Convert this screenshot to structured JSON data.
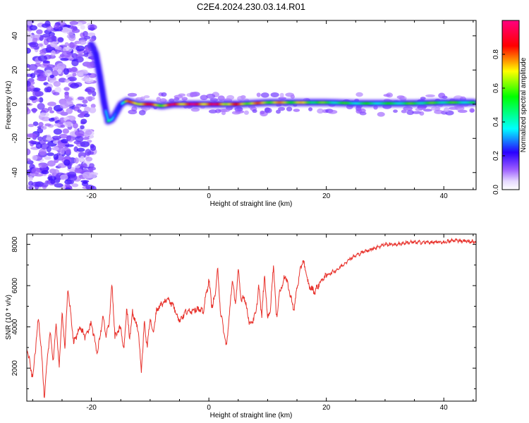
{
  "title": "C2E4.2024.230.03.14.R01",
  "colors": {
    "snr_line": "#e8322c",
    "ridge_low": "#2a00ff",
    "ridge_high": "#ff0000",
    "speckle": "#a060ff"
  },
  "chart_data": [
    {
      "type": "heatmap",
      "name": "spectrogram",
      "title": "C2E4.2024.230.03.14.R01",
      "xlabel": "Height of straight line (km)",
      "ylabel": "Frequency (Hz)",
      "xlim": [
        -31,
        45.5
      ],
      "ylim": [
        -50,
        49
      ],
      "xticks": [
        -20,
        0,
        20,
        40
      ],
      "yticks": [
        -40,
        -20,
        0,
        20,
        40
      ],
      "xticklabels": [
        "-20",
        "0",
        "20",
        "40"
      ],
      "yticklabels": [
        "-40",
        "-20",
        "0",
        "20",
        "40"
      ],
      "colorbar": {
        "label": "Normalized spectral amplitude",
        "range": [
          0,
          1
        ],
        "ticks": [
          0.0,
          0.2,
          0.4,
          0.6,
          0.8
        ],
        "ticklabels": [
          "0.0",
          "0.2",
          "0.4",
          "0.6",
          "0.8"
        ],
        "colormap": "rainbow (white-violet-blue-cyan-green-yellow-red-magenta)"
      },
      "ridge": {
        "description": "dominant spectral line",
        "x": [
          -20,
          -19.3,
          -18.5,
          -17.8,
          -17.2,
          -16.5,
          -15.8,
          -15,
          -14,
          -12,
          -10,
          -8,
          -6,
          -4,
          -2,
          0,
          5,
          10,
          15,
          20,
          25,
          30,
          35,
          40,
          45
        ],
        "freq": [
          35,
          30,
          15,
          0,
          -10,
          -9,
          -5,
          0,
          2,
          0,
          0,
          -1,
          0,
          0,
          0,
          0,
          0,
          1,
          1,
          1,
          0.5,
          0.5,
          0.5,
          1,
          1
        ],
        "amplitude": [
          0.25,
          0.3,
          0.25,
          0.2,
          0.5,
          0.4,
          0.35,
          0.3,
          0.8,
          0.95,
          0.9,
          0.8,
          0.98,
          0.99,
          0.99,
          0.99,
          0.85,
          0.8,
          0.75,
          0.6,
          0.55,
          0.55,
          0.6,
          0.6,
          0.55
        ]
      },
      "noise_region": {
        "x_from": -31,
        "x_to": -19.5,
        "amplitude_typical": 0.1
      }
    },
    {
      "type": "line",
      "name": "snr",
      "xlabel": "Height of straight line (km)",
      "ylabel": "SNR (10 * v/v)",
      "xlim": [
        -31,
        45.5
      ],
      "ylim": [
        400,
        8500
      ],
      "xticks": [
        -20,
        0,
        20,
        40
      ],
      "yticks": [
        2000,
        4000,
        6000,
        8000
      ],
      "xticklabels": [
        "-20",
        "0",
        "20",
        "40"
      ],
      "yticklabels": [
        "2000",
        "4000",
        "6000",
        "8000"
      ],
      "series": [
        {
          "name": "SNR",
          "x": [
            -31,
            -30,
            -29,
            -28.5,
            -28,
            -27.5,
            -27,
            -26.5,
            -26,
            -25.5,
            -25,
            -24.5,
            -24,
            -23,
            -22,
            -21,
            -20,
            -19,
            -18,
            -17.5,
            -17,
            -16.5,
            -16,
            -15,
            -14.5,
            -14,
            -13.5,
            -13,
            -12,
            -11.5,
            -11,
            -10.5,
            -10,
            -9.5,
            -9,
            -8.5,
            -8,
            -7.5,
            -7,
            -6,
            -5,
            -4,
            -3,
            -2,
            -1,
            0,
            0.5,
            1,
            1.5,
            2,
            3,
            4,
            4.5,
            5,
            5.5,
            6,
            7,
            8,
            8.5,
            9,
            9.5,
            10,
            10.5,
            11,
            11.5,
            12,
            13,
            14,
            14.5,
            15,
            16,
            17,
            18,
            19,
            20,
            22,
            24,
            26,
            28,
            30,
            32,
            34,
            36,
            38,
            40,
            42,
            44,
            45.5
          ],
          "y": [
            3000,
            1500,
            4500,
            2800,
            500,
            2500,
            3800,
            2300,
            4200,
            2000,
            4700,
            3000,
            5900,
            3200,
            4000,
            3500,
            4200,
            2700,
            4500,
            3500,
            4200,
            6100,
            3500,
            4000,
            2800,
            4900,
            3500,
            4700,
            3800,
            1800,
            4200,
            3000,
            4500,
            3600,
            4700,
            5000,
            5100,
            5200,
            5400,
            5000,
            4300,
            4700,
            4800,
            4900,
            4700,
            6300,
            5000,
            5400,
            6800,
            4700,
            3000,
            6300,
            5100,
            6700,
            5300,
            5500,
            4100,
            4600,
            6000,
            4500,
            6500,
            4400,
            4900,
            7100,
            4400,
            5600,
            6500,
            5400,
            4800,
            5900,
            7300,
            6000,
            5700,
            6200,
            6500,
            6800,
            7300,
            7600,
            7800,
            8000,
            8000,
            8100,
            8100,
            8100,
            8100,
            8200,
            8150,
            8100
          ]
        }
      ]
    }
  ]
}
